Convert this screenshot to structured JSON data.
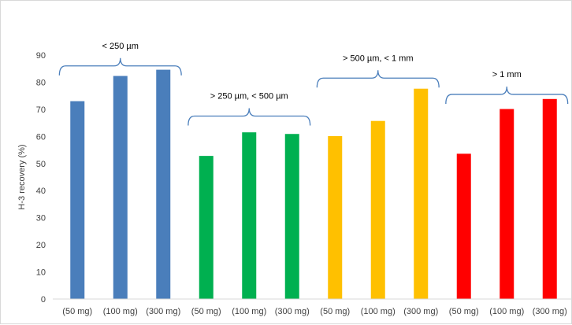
{
  "chart_data": {
    "type": "bar",
    "title": "",
    "xlabel": "",
    "ylabel": "H-3 recovery (%)",
    "ylim": [
      0,
      90
    ],
    "yticks": [
      0,
      10,
      20,
      30,
      40,
      50,
      60,
      70,
      80,
      90
    ],
    "grid": false,
    "legend": "none",
    "categories": [
      "(50 mg)",
      "(100 mg)",
      "(300 mg)",
      "(50 mg)",
      "(100 mg)",
      "(300 mg)",
      "(50 mg)",
      "(100 mg)",
      "(300 mg)",
      "(50 mg)",
      "(100 mg)",
      "(300 mg)"
    ],
    "values": [
      73,
      82.3,
      84.6,
      52.8,
      61.5,
      60.9,
      60.1,
      65.7,
      77.6,
      53.6,
      70.1,
      73.8
    ],
    "bar_colors": [
      "#4a7ebb",
      "#4a7ebb",
      "#4a7ebb",
      "#00b050",
      "#00b050",
      "#00b050",
      "#ffc000",
      "#ffc000",
      "#ffc000",
      "#ff0000",
      "#ff0000",
      "#ff0000"
    ],
    "groups": [
      {
        "label": "< 250 µm",
        "start": 0,
        "end": 2,
        "value_at": 86,
        "color": "#4a7ebb"
      },
      {
        "label": "> 250 µm, < 500 µm",
        "start": 3,
        "end": 5,
        "value_at": 67.5,
        "color": "#4a7ebb"
      },
      {
        "label": "> 500 µm, < 1 mm",
        "start": 6,
        "end": 8,
        "value_at": 81.5,
        "color": "#4a7ebb"
      },
      {
        "label": "> 1 mm",
        "start": 9,
        "end": 11,
        "value_at": 75.5,
        "color": "#4a7ebb"
      }
    ]
  }
}
